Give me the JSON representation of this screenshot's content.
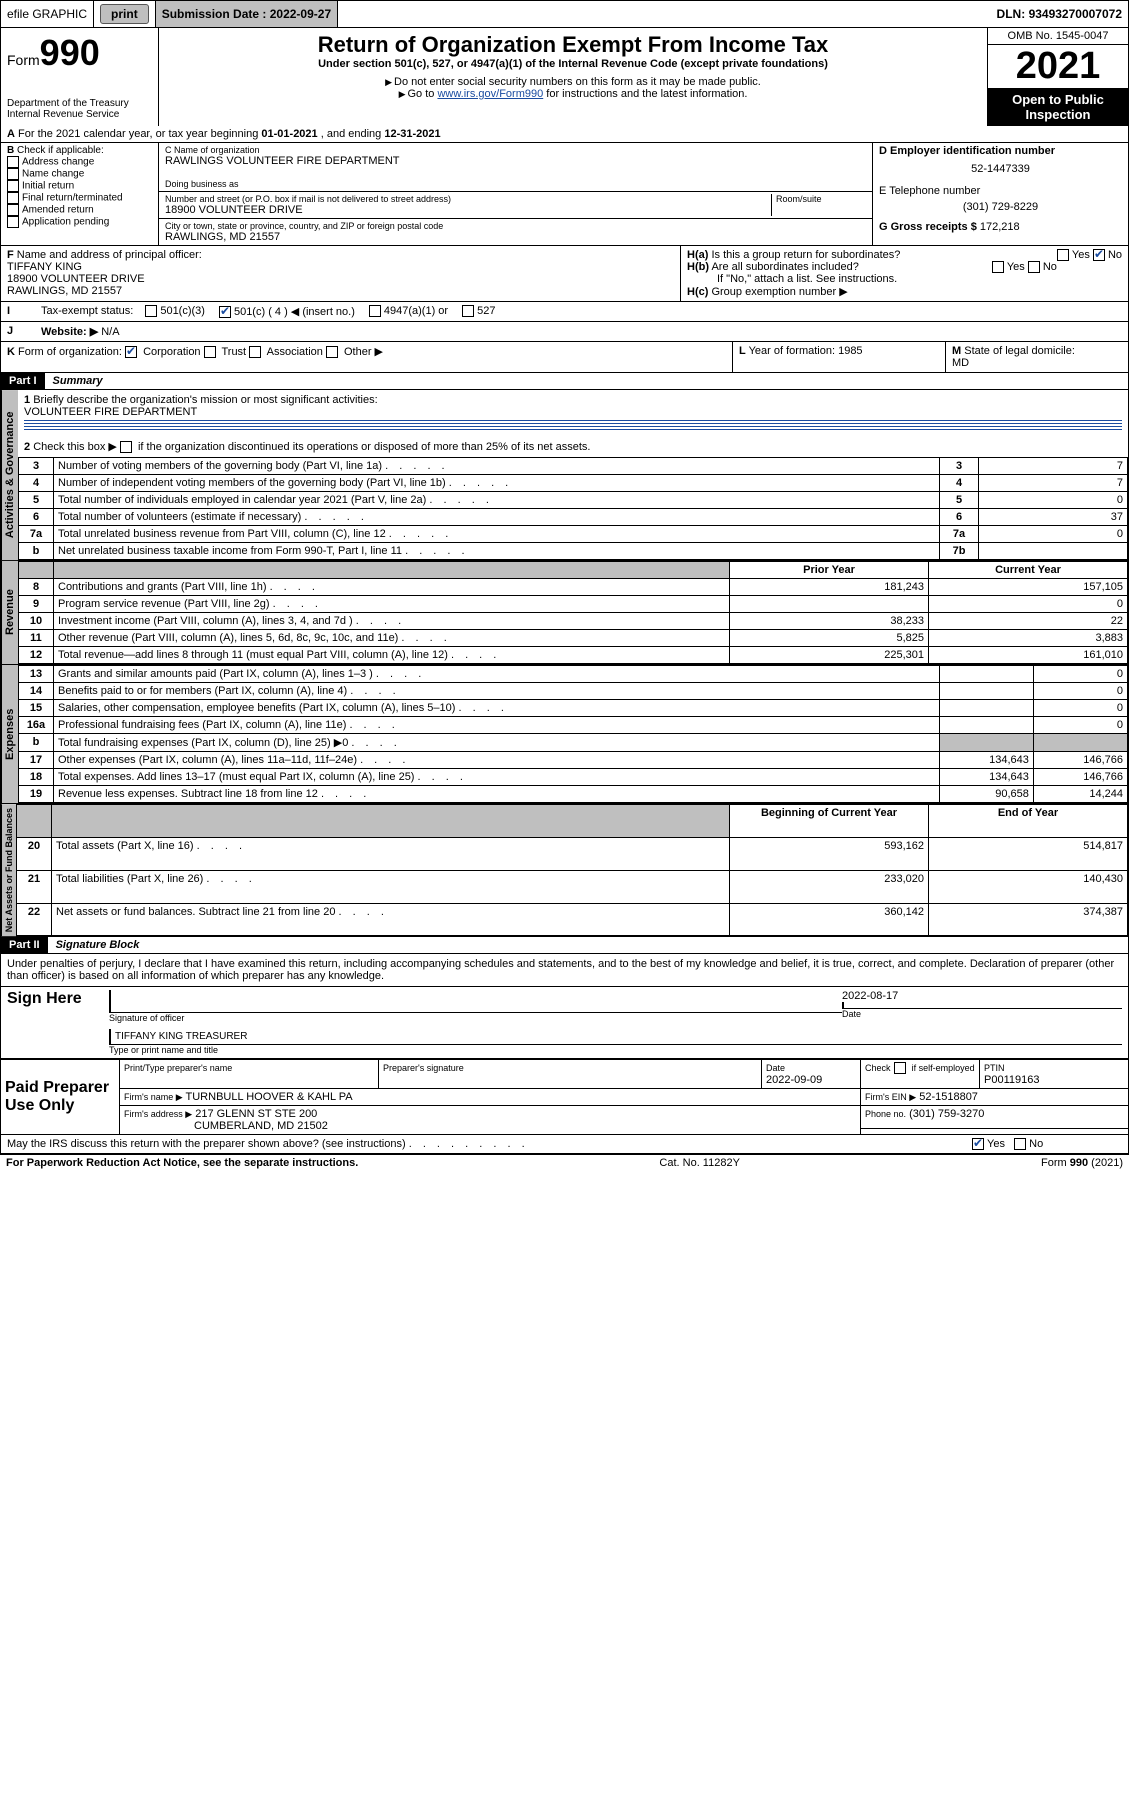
{
  "topbar": {
    "efile": "efile GRAPHIC",
    "print": "print",
    "submission_label": "Submission Date :",
    "submission_date": "2022-09-27",
    "dln_label": "DLN:",
    "dln": "93493270007072"
  },
  "header": {
    "form_word": "Form",
    "form_num": "990",
    "dept": "Department of the Treasury",
    "irs": "Internal Revenue Service",
    "title": "Return of Organization Exempt From Income Tax",
    "sub1": "Under section 501(c), 527, or 4947(a)(1) of the Internal Revenue Code (except private foundations)",
    "sub2": "Do not enter social security numbers on this form as it may be made public.",
    "sub3_pre": "Go to ",
    "sub3_link": "www.irs.gov/Form990",
    "sub3_post": " for instructions and the latest information.",
    "omb": "OMB No. 1545-0047",
    "year": "2021",
    "open": "Open to Public Inspection"
  },
  "rowA": {
    "label": "A",
    "text_pre": "For the 2021 calendar year, or tax year beginning ",
    "begin": "01-01-2021",
    "mid": " , and ending ",
    "end": "12-31-2021"
  },
  "colB": {
    "label": "B",
    "title": "Check if applicable:",
    "items": [
      "Address change",
      "Name change",
      "Initial return",
      "Final return/terminated",
      "Amended return",
      "Application pending"
    ]
  },
  "colC": {
    "name_label": "C Name of organization",
    "name": "RAWLINGS VOLUNTEER FIRE DEPARTMENT",
    "dba_label": "Doing business as",
    "street_label": "Number and street (or P.O. box if mail is not delivered to street address)",
    "room_label": "Room/suite",
    "street": "18900 VOLUNTEER DRIVE",
    "city_label": "City or town, state or province, country, and ZIP or foreign postal code",
    "city": "RAWLINGS, MD  21557"
  },
  "colD": {
    "d_label": "D Employer identification number",
    "ein": "52-1447339",
    "e_label": "E Telephone number",
    "phone": "(301) 729-8229",
    "g_label": "G Gross receipts $",
    "g_value": "172,218"
  },
  "rowF": {
    "f_label": "F",
    "f_text": "Name and address of principal officer:",
    "officer_name": "TIFFANY KING",
    "officer_addr1": "18900 VOLUNTEER DRIVE",
    "officer_addr2": "RAWLINGS, MD  21557",
    "ha_label": "H(a)",
    "ha_text": "Is this a group return for subordinates?",
    "hb_label": "H(b)",
    "hb_text": "Are all subordinates included?",
    "hb_note": "If \"No,\" attach a list. See instructions.",
    "hc_label": "H(c)",
    "hc_text": "Group exemption number ▶",
    "yes": "Yes",
    "no": "No"
  },
  "rowI": {
    "i_label": "I",
    "i_text": "Tax-exempt status:",
    "opts": [
      "501(c)(3)",
      "501(c) ( 4 ) ◀ (insert no.)",
      "4947(a)(1) or",
      "527"
    ]
  },
  "rowJ": {
    "j_label": "J",
    "j_text": "Website: ▶",
    "j_val": "N/A"
  },
  "rowK": {
    "k_label": "K",
    "k_text": "Form of organization:",
    "opts": [
      "Corporation",
      "Trust",
      "Association",
      "Other ▶"
    ],
    "l_label": "L",
    "l_text": "Year of formation:",
    "l_val": "1985",
    "m_label": "M",
    "m_text": "State of legal domicile:",
    "m_val": "MD"
  },
  "partI": {
    "label": "Part I",
    "title": "Summary"
  },
  "summary": {
    "q1_label": "1",
    "q1_text": "Briefly describe the organization's mission or most significant activities:",
    "q1_val": "VOLUNTEER FIRE DEPARTMENT",
    "q2_label": "2",
    "q2_text": "Check this box ▶",
    "q2_post": "if the organization discontinued its operations or disposed of more than 25% of its net assets.",
    "lines_gov": [
      {
        "n": "3",
        "text": "Number of voting members of the governing body (Part VI, line 1a)",
        "box": "3",
        "val": "7"
      },
      {
        "n": "4",
        "text": "Number of independent voting members of the governing body (Part VI, line 1b)",
        "box": "4",
        "val": "7"
      },
      {
        "n": "5",
        "text": "Total number of individuals employed in calendar year 2021 (Part V, line 2a)",
        "box": "5",
        "val": "0"
      },
      {
        "n": "6",
        "text": "Total number of volunteers (estimate if necessary)",
        "box": "6",
        "val": "37"
      },
      {
        "n": "7a",
        "text": "Total unrelated business revenue from Part VIII, column (C), line 12",
        "box": "7a",
        "val": "0"
      },
      {
        "n": "b",
        "text": "Net unrelated business taxable income from Form 990-T, Part I, line 11",
        "box": "7b",
        "val": ""
      }
    ],
    "col_prior": "Prior Year",
    "col_current": "Current Year",
    "revenue": [
      {
        "n": "8",
        "text": "Contributions and grants (Part VIII, line 1h)",
        "p": "181,243",
        "c": "157,105"
      },
      {
        "n": "9",
        "text": "Program service revenue (Part VIII, line 2g)",
        "p": "",
        "c": "0"
      },
      {
        "n": "10",
        "text": "Investment income (Part VIII, column (A), lines 3, 4, and 7d )",
        "p": "38,233",
        "c": "22"
      },
      {
        "n": "11",
        "text": "Other revenue (Part VIII, column (A), lines 5, 6d, 8c, 9c, 10c, and 11e)",
        "p": "5,825",
        "c": "3,883"
      },
      {
        "n": "12",
        "text": "Total revenue—add lines 8 through 11 (must equal Part VIII, column (A), line 12)",
        "p": "225,301",
        "c": "161,010"
      }
    ],
    "expenses": [
      {
        "n": "13",
        "text": "Grants and similar amounts paid (Part IX, column (A), lines 1–3 )",
        "p": "",
        "c": "0"
      },
      {
        "n": "14",
        "text": "Benefits paid to or for members (Part IX, column (A), line 4)",
        "p": "",
        "c": "0"
      },
      {
        "n": "15",
        "text": "Salaries, other compensation, employee benefits (Part IX, column (A), lines 5–10)",
        "p": "",
        "c": "0"
      },
      {
        "n": "16a",
        "text": "Professional fundraising fees (Part IX, column (A), line 11e)",
        "p": "",
        "c": "0"
      },
      {
        "n": "b",
        "text": "Total fundraising expenses (Part IX, column (D), line 25) ▶0",
        "p": "GREY",
        "c": "GREY"
      },
      {
        "n": "17",
        "text": "Other expenses (Part IX, column (A), lines 11a–11d, 11f–24e)",
        "p": "134,643",
        "c": "146,766"
      },
      {
        "n": "18",
        "text": "Total expenses. Add lines 13–17 (must equal Part IX, column (A), line 25)",
        "p": "134,643",
        "c": "146,766"
      },
      {
        "n": "19",
        "text": "Revenue less expenses. Subtract line 18 from line 12",
        "p": "90,658",
        "c": "14,244"
      }
    ],
    "col_begin": "Beginning of Current Year",
    "col_end": "End of Year",
    "net": [
      {
        "n": "20",
        "text": "Total assets (Part X, line 16)",
        "p": "593,162",
        "c": "514,817"
      },
      {
        "n": "21",
        "text": "Total liabilities (Part X, line 26)",
        "p": "233,020",
        "c": "140,430"
      },
      {
        "n": "22",
        "text": "Net assets or fund balances. Subtract line 21 from line 20",
        "p": "360,142",
        "c": "374,387"
      }
    ],
    "vlabels": {
      "gov": "Activities & Governance",
      "rev": "Revenue",
      "exp": "Expenses",
      "net": "Net Assets or Fund Balances"
    }
  },
  "partII": {
    "label": "Part II",
    "title": "Signature Block"
  },
  "sig": {
    "decl": "Under penalties of perjury, I declare that I have examined this return, including accompanying schedules and statements, and to the best of my knowledge and belief, it is true, correct, and complete. Declaration of preparer (other than officer) is based on all information of which preparer has any knowledge.",
    "sign_here": "Sign Here",
    "sig_officer": "Signature of officer",
    "sig_date": "2022-08-17",
    "date_label": "Date",
    "name_title": "TIFFANY KING TREASURER",
    "name_title_label": "Type or print name and title",
    "paid": "Paid Preparer Use Only",
    "h_name": "Print/Type preparer's name",
    "h_sig": "Preparer's signature",
    "h_date": "Date",
    "date_val": "2022-09-09",
    "check_label": "Check",
    "self_emp": "if self-employed",
    "ptin_label": "PTIN",
    "ptin": "P00119163",
    "firm_name_label": "Firm's name ▶",
    "firm_name": "TURNBULL HOOVER & KAHL PA",
    "firm_ein_label": "Firm's EIN ▶",
    "firm_ein": "52-1518807",
    "firm_addr_label": "Firm's address ▶",
    "firm_addr1": "217 GLENN ST STE 200",
    "firm_addr2": "CUMBERLAND, MD  21502",
    "phone_label": "Phone no.",
    "phone": "(301) 759-3270",
    "may_irs": "May the IRS discuss this return with the preparer shown above? (see instructions)"
  },
  "footer": {
    "left": "For Paperwork Reduction Act Notice, see the separate instructions.",
    "mid": "Cat. No. 11282Y",
    "right_pre": "Form ",
    "right_bold": "990",
    "right_post": " (2021)"
  }
}
